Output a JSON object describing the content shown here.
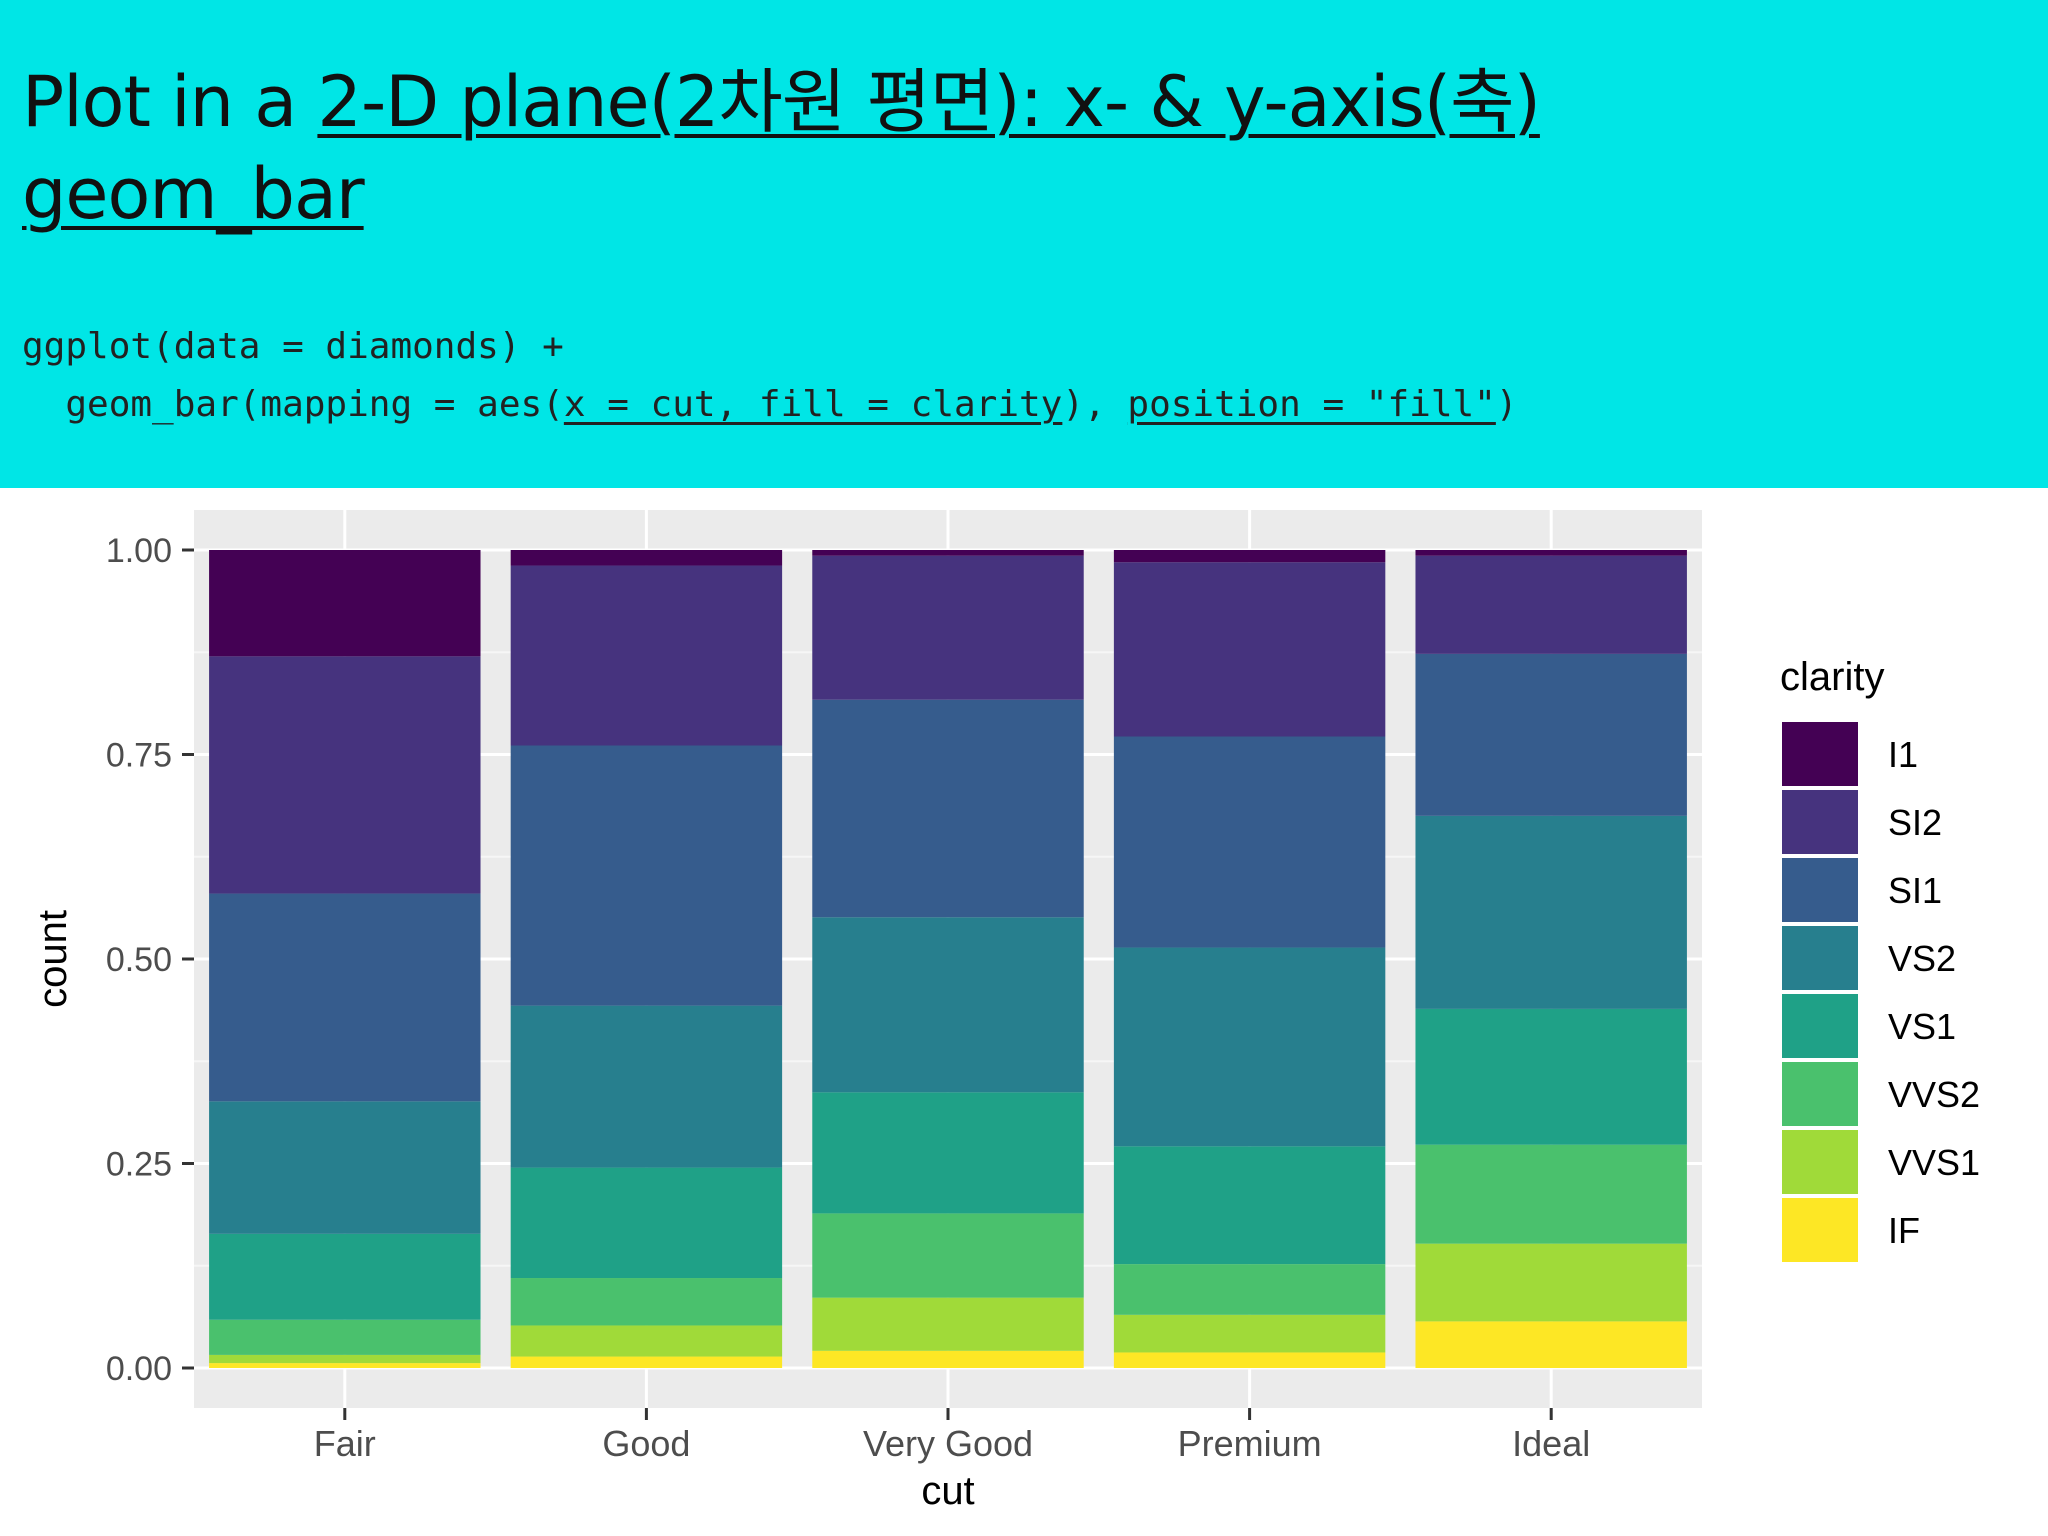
{
  "slide": {
    "title_prefix": "Plot in a ",
    "title_underlined": "2-D plane(2차원 평면): x- & y-axis(축)",
    "title_line2": "geom_bar",
    "code_line1": "ggplot(data = diamonds) +",
    "code_line2_a": "  geom_bar(mapping = aes(",
    "code_line2_b": "x = cut, fill = clarity",
    "code_line2_c": "), ",
    "code_line2_d": "position = \"fill\"",
    "code_line2_e": ")"
  },
  "chart_data": {
    "type": "bar",
    "stacked": "fill",
    "categories": [
      "Fair",
      "Good",
      "Very Good",
      "Premium",
      "Ideal"
    ],
    "xlabel": "cut",
    "ylabel": "count",
    "ylim": [
      0,
      1
    ],
    "yticks": [
      "0.00",
      "0.25",
      "0.50",
      "0.75",
      "1.00"
    ],
    "legend_title": "clarity",
    "legend_position": "right",
    "grid": true,
    "series": [
      {
        "name": "I1",
        "color": "#440154",
        "values": [
          0.13,
          0.019,
          0.007,
          0.015,
          0.007
        ]
      },
      {
        "name": "SI2",
        "color": "#46337e",
        "values": [
          0.29,
          0.22,
          0.176,
          0.213,
          0.12
        ]
      },
      {
        "name": "SI1",
        "color": "#365c8d",
        "values": [
          0.254,
          0.318,
          0.266,
          0.258,
          0.198
        ]
      },
      {
        "name": "VS2",
        "color": "#277f8e",
        "values": [
          0.162,
          0.198,
          0.214,
          0.243,
          0.236
        ]
      },
      {
        "name": "VS1",
        "color": "#1fa187",
        "values": [
          0.105,
          0.135,
          0.148,
          0.144,
          0.166
        ]
      },
      {
        "name": "VVS2",
        "color": "#4ac16d",
        "values": [
          0.043,
          0.058,
          0.103,
          0.062,
          0.121
        ]
      },
      {
        "name": "VVS1",
        "color": "#a0da39",
        "values": [
          0.01,
          0.038,
          0.065,
          0.046,
          0.095
        ]
      },
      {
        "name": "IF",
        "color": "#fde725",
        "values": [
          0.006,
          0.014,
          0.021,
          0.019,
          0.057
        ]
      }
    ]
  }
}
